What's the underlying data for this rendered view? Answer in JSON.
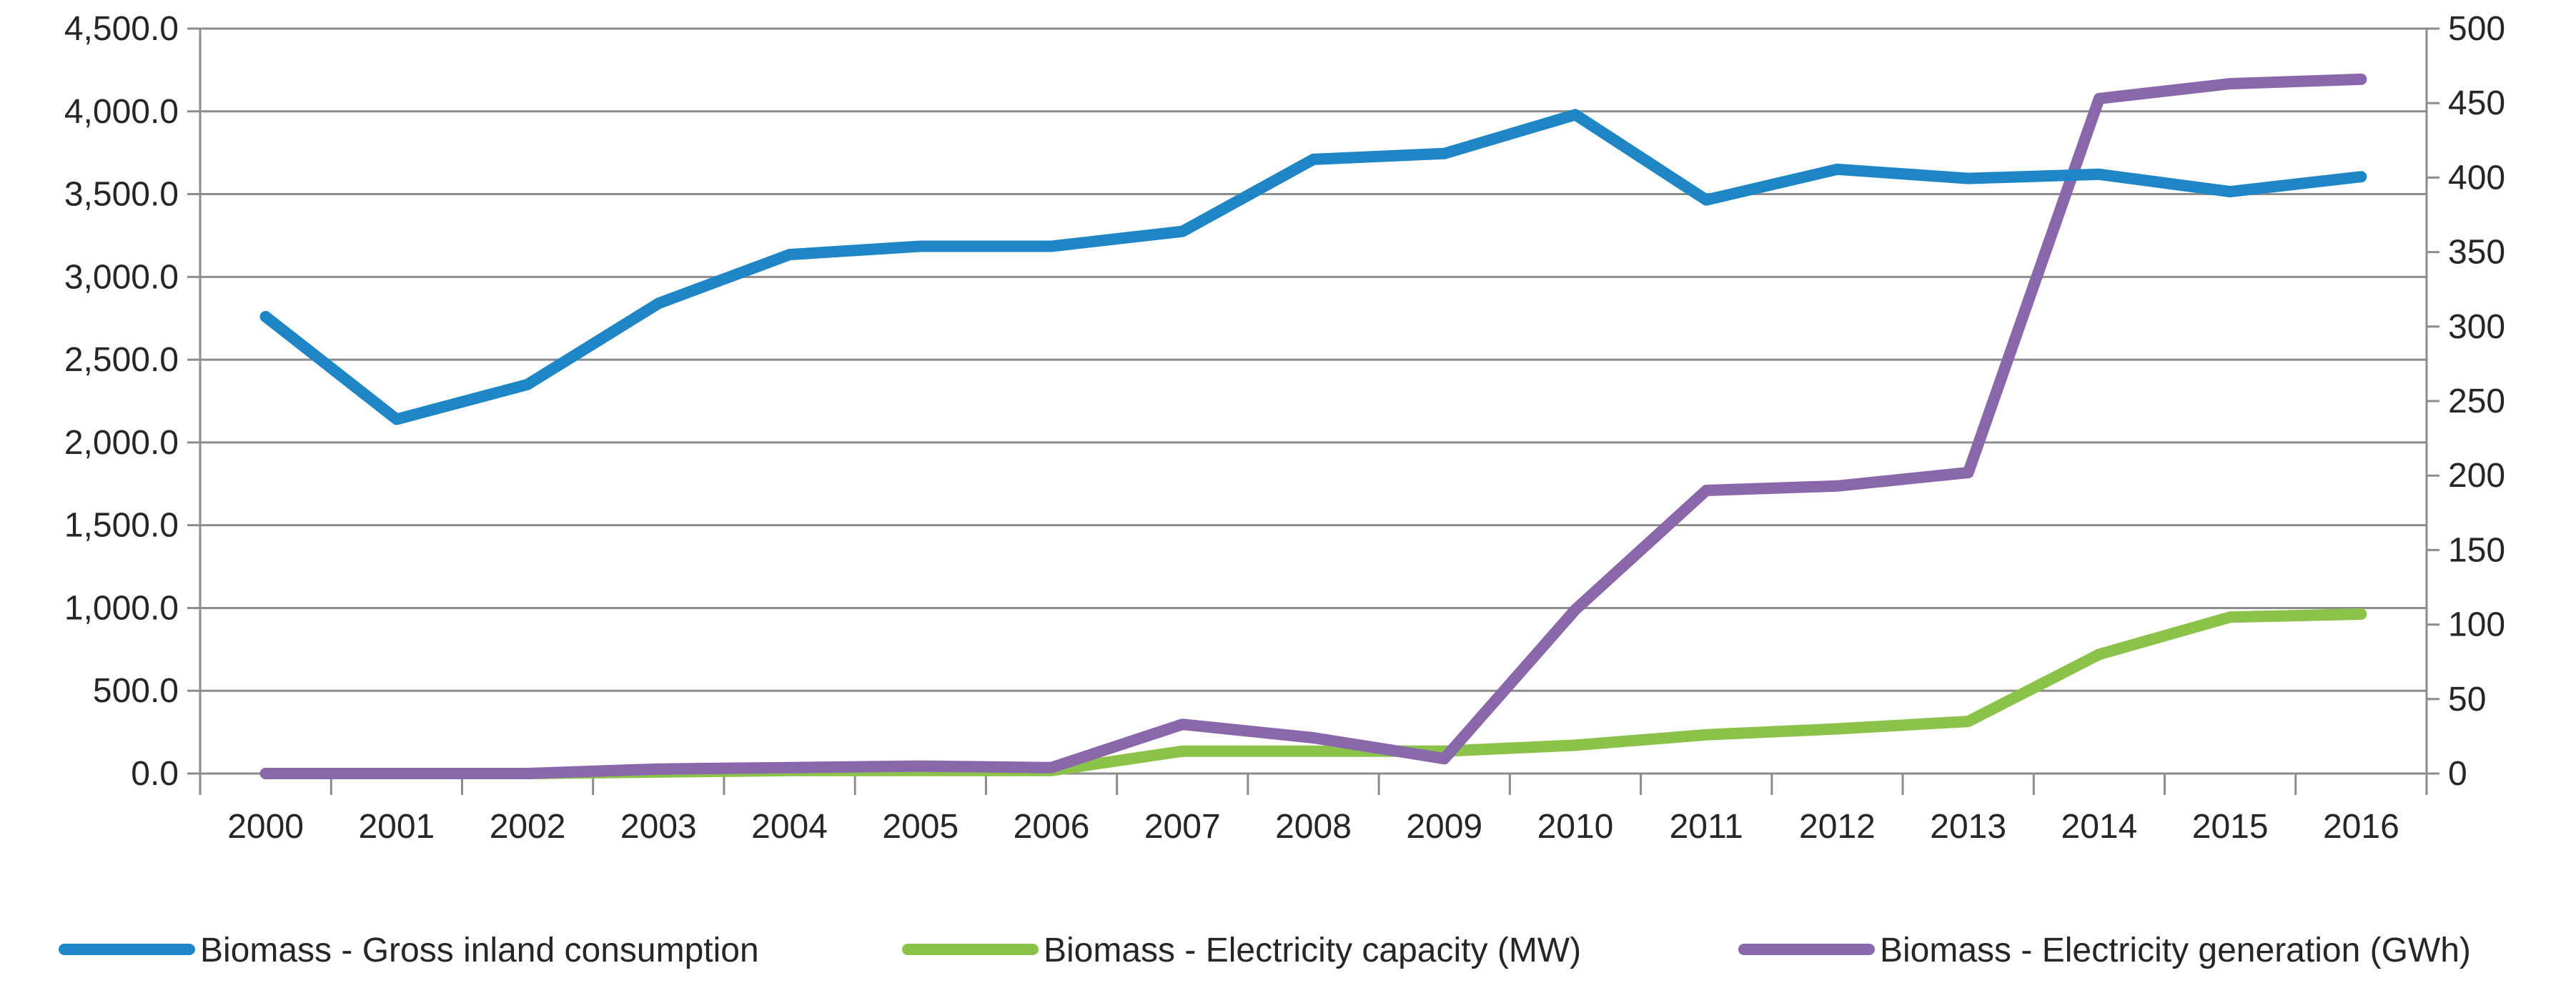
{
  "chart_data": {
    "type": "line",
    "categories": [
      "2000",
      "2001",
      "2002",
      "2003",
      "2004",
      "2005",
      "2006",
      "2007",
      "2008",
      "2009",
      "2010",
      "2011",
      "2012",
      "2013",
      "2014",
      "2015",
      "2016"
    ],
    "y_left": {
      "ylim": [
        0,
        4500
      ],
      "ticks": [
        0,
        500,
        1000,
        1500,
        2000,
        2500,
        3000,
        3500,
        4000,
        4500
      ],
      "tick_labels": [
        "0.0",
        "500.0",
        "1,000.0",
        "1,500.0",
        "2,000.0",
        "2,500.0",
        "3,000.0",
        "3,500.0",
        "4,000.0",
        "4,500.0"
      ]
    },
    "y_right": {
      "ylim": [
        0,
        500
      ],
      "ticks": [
        0,
        50,
        100,
        150,
        200,
        250,
        300,
        350,
        400,
        450,
        500
      ],
      "tick_labels": [
        "0",
        "50",
        "100",
        "150",
        "200",
        "250",
        "300",
        "350",
        "400",
        "450",
        "500"
      ]
    },
    "grid": true,
    "legend": "bottom",
    "series": [
      {
        "name": "Biomass - Gross inland consumption",
        "axis": "left",
        "color": "#1F86C6",
        "values": [
          2760,
          2140,
          2350,
          2840,
          3135,
          3185,
          3185,
          3275,
          3710,
          3745,
          3980,
          3465,
          3650,
          3595,
          3620,
          3515,
          3605
        ]
      },
      {
        "name": "Biomass - Electricity capacity (MW)",
        "axis": "right",
        "color": "#8BC34A",
        "values": [
          0,
          0,
          0,
          1,
          2,
          2,
          2,
          15,
          15,
          15,
          19,
          26,
          30,
          35,
          80,
          105,
          107
        ]
      },
      {
        "name": "Biomass - Electricity generation (GWh)",
        "axis": "right",
        "color": "#8A67AB",
        "values": [
          0,
          0,
          0,
          3,
          4,
          5,
          4,
          33,
          24,
          10,
          110,
          190,
          193,
          202,
          453,
          463,
          466
        ]
      }
    ]
  }
}
